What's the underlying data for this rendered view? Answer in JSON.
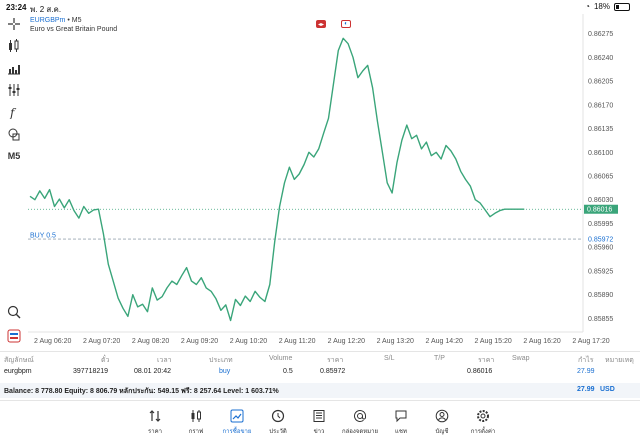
{
  "status": {
    "time": "23:24",
    "date": "พ. 2 ส.ค.",
    "battery": "18%"
  },
  "toolbar": {
    "timeframe": "M5"
  },
  "chart": {
    "symbol": "EURGBPm",
    "timeframe": "M5",
    "description": "Euro vs Great Britain Pound",
    "price_marker": "0.86016",
    "buy_marker": "0.85972",
    "buy_label": "BUY 0.5",
    "colors": {
      "line": "#3aa57a",
      "price_line": "#3aa57a",
      "buy_line": "#9aa6b2",
      "accent": "#1a6fd1"
    }
  },
  "chart_data": {
    "type": "line",
    "title": "",
    "x_ticks": [
      "2 Aug 06:20",
      "2 Aug 07:20",
      "2 Aug 08:20",
      "2 Aug 09:20",
      "2 Aug 10:20",
      "2 Aug 11:20",
      "2 Aug 12:20",
      "2 Aug 13:20",
      "2 Aug 14:20",
      "2 Aug 15:20",
      "2 Aug 16:20",
      "2 Aug 17:20"
    ],
    "y_ticks": [
      0.86275,
      0.8624,
      0.86205,
      0.8617,
      0.86135,
      0.861,
      0.86065,
      0.8603,
      0.85995,
      0.8596,
      0.85925,
      0.8589,
      0.85855
    ],
    "ylim": [
      0.85835,
      0.86295
    ],
    "x_range": [
      0,
      11.3
    ],
    "series": [
      {
        "x": [
          0.0,
          0.1,
          0.2,
          0.3,
          0.4,
          0.5,
          0.6,
          0.7,
          0.8,
          0.9,
          1.0,
          1.1,
          1.2,
          1.3,
          1.4,
          1.5,
          1.6,
          1.7,
          1.8,
          1.9,
          2.0,
          2.1,
          2.2,
          2.3,
          2.4,
          2.5,
          2.6,
          2.7,
          2.8,
          2.9,
          3.0,
          3.1,
          3.2,
          3.3,
          3.4,
          3.5,
          3.6,
          3.7,
          3.8,
          3.9,
          4.0,
          4.1,
          4.2,
          4.3,
          4.4,
          4.5,
          4.6,
          4.7,
          4.8,
          4.9,
          5.0,
          5.1,
          5.2,
          5.3,
          5.4,
          5.5,
          5.6,
          5.7,
          5.8,
          5.9,
          6.0,
          6.1,
          6.2,
          6.3,
          6.4,
          6.5,
          6.6,
          6.7,
          6.8,
          6.9,
          7.0,
          7.1,
          7.2,
          7.3,
          7.4,
          7.5,
          7.6,
          7.7,
          7.8,
          7.9,
          8.0,
          8.1,
          8.2,
          8.3,
          8.4,
          8.5,
          8.6,
          8.7,
          8.8,
          8.9,
          9.0,
          9.1,
          9.2,
          9.3,
          9.4,
          9.5,
          9.6,
          9.7,
          9.8,
          9.9,
          10.0,
          10.1
        ],
        "y": [
          0.86035,
          0.8603,
          0.86043,
          0.86032,
          0.86045,
          0.8602,
          0.86031,
          0.86018,
          0.8603,
          0.86014,
          0.86003,
          0.8602,
          0.8601,
          0.86015,
          0.86016,
          0.8598,
          0.85935,
          0.8591,
          0.85885,
          0.8587,
          0.85858,
          0.8589,
          0.85872,
          0.85876,
          0.85865,
          0.859,
          0.85882,
          0.85887,
          0.859,
          0.8591,
          0.85905,
          0.85918,
          0.8593,
          0.8591,
          0.85905,
          0.85915,
          0.859,
          0.85895,
          0.85884,
          0.85867,
          0.85875,
          0.85852,
          0.85883,
          0.85874,
          0.85888,
          0.8588,
          0.85895,
          0.85886,
          0.8588,
          0.85905,
          0.85968,
          0.8602,
          0.86055,
          0.86078,
          0.8606,
          0.86068,
          0.86082,
          0.861,
          0.86093,
          0.86105,
          0.86128,
          0.8615,
          0.862,
          0.8625,
          0.86268,
          0.8626,
          0.8624,
          0.8621,
          0.8622,
          0.86228,
          0.86195,
          0.86145,
          0.861,
          0.86055,
          0.8604,
          0.86085,
          0.86118,
          0.8614,
          0.8612,
          0.86125,
          0.86105,
          0.86115,
          0.86095,
          0.861,
          0.8609,
          0.8611,
          0.86102,
          0.8609,
          0.86072,
          0.8606,
          0.8605,
          0.8603,
          0.86025,
          0.86015,
          0.86005,
          0.8601,
          0.86014,
          0.86016,
          0.86016,
          0.86016,
          0.86016,
          0.86016
        ]
      }
    ],
    "grid": false,
    "price_line": 0.86016,
    "buy_line": 0.85972
  },
  "table": {
    "headers": [
      "สัญลักษณ์",
      "ตั๋ว",
      "เวลา",
      "ประเภท",
      "Volume",
      "ราคา",
      "S/L",
      "T/P",
      "ราคา",
      "Swap",
      "กำไร",
      "หมายเหตุ"
    ],
    "row": {
      "symbol": "eurgbpm",
      "ticket": "397718219",
      "time": "08.01 20:42",
      "type": "buy",
      "volume": "0.5",
      "open_price": "0.85972",
      "sl": "",
      "tp": "",
      "current_price": "0.86016",
      "swap": "",
      "profit": "27.99",
      "comment": ""
    }
  },
  "balance": {
    "text": "Balance: 8 778.80 Equity: 8 806.79 หลักประกัน: 549.15 ฟรี: 8 257.64 Level: 1 603.71%",
    "profit": "27.99",
    "currency": "USD"
  },
  "nav": [
    {
      "label": "ราคา",
      "icon": "quotes-icon"
    },
    {
      "label": "กราฟ",
      "icon": "candles-icon"
    },
    {
      "label": "การซื้อขาย",
      "icon": "trade-icon"
    },
    {
      "label": "ประวัติ",
      "icon": "history-icon"
    },
    {
      "label": "ข่าว",
      "icon": "news-icon"
    },
    {
      "label": "กล่องจดหมาย",
      "icon": "mailbox-icon"
    },
    {
      "label": "แชท",
      "icon": "chat-icon"
    },
    {
      "label": "บัญชี",
      "icon": "account-icon"
    },
    {
      "label": "การตั้งค่า",
      "icon": "settings-icon"
    }
  ]
}
